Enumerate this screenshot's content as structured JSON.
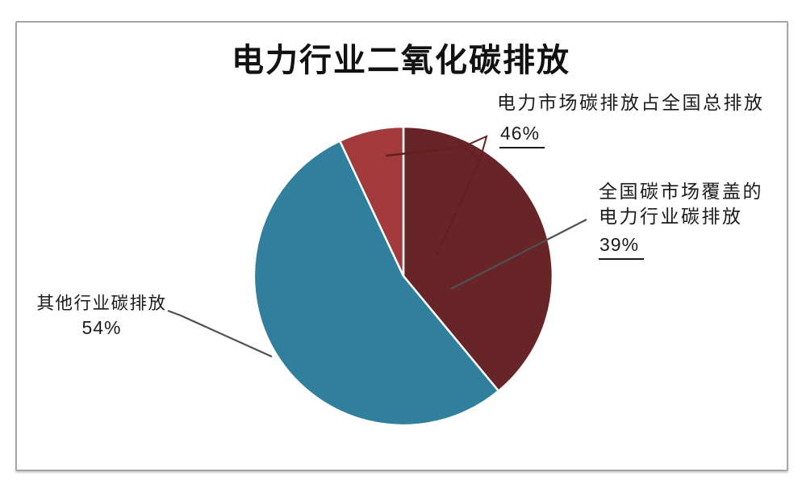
{
  "chart_data": {
    "type": "pie",
    "title": "电力行业二氧化碳排放",
    "direction": "clockwise",
    "start_angle_deg_from_12_oclock": 0,
    "legend": "none",
    "slices": [
      {
        "name": "covered-power",
        "label": "全国碳市场覆盖的电力行业碳排放",
        "pct_label": "39%",
        "value": 39,
        "color": "#682527"
      },
      {
        "name": "other-industries",
        "label": "其他行业碳排放",
        "pct_label": "54%",
        "value": 54,
        "color": "#2f7f9d"
      },
      {
        "name": "uncovered-power",
        "label": "",
        "pct_label": "",
        "value": 7,
        "color": "#a33a3b"
      }
    ],
    "annotation": {
      "text": "电力市场碳排放占全国总排放",
      "pct_label": "46%"
    }
  },
  "labels": {
    "total_power": {
      "text": "电力市场碳排放占全国总排放",
      "pct": "46%"
    },
    "covered_power": {
      "line1": "全国碳市场覆盖的",
      "line2": "电力行业碳排放",
      "pct": "39%"
    },
    "other_industries": {
      "text": "其他行业碳排放",
      "pct": "54%"
    }
  },
  "colors": {
    "teal_slice": "#2f7f9d",
    "maroon_slice": "#682527",
    "red_slice": "#a33a3b",
    "slice_divider": "#ffffff",
    "leader_dark_red": "#641f20",
    "leader_gray": "#515151",
    "text": "#1b1b1b",
    "frame_border": "#a3a7ab"
  }
}
